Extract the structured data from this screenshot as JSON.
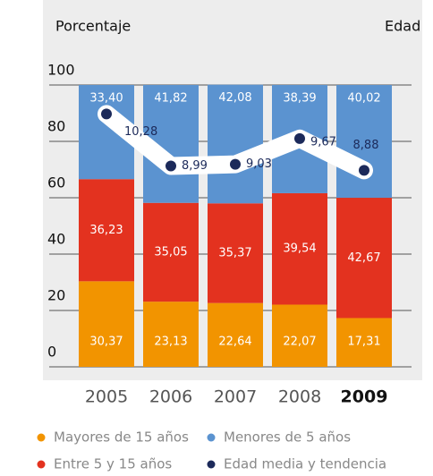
{
  "chart_data": {
    "type": "stacked-bar",
    "y_label": "Porcentaje",
    "y2_label": "Edad",
    "categories": [
      "2005",
      "2006",
      "2007",
      "2008",
      "2009"
    ],
    "ylim": [
      0,
      100
    ],
    "yticks": [
      0,
      20,
      40,
      60,
      80,
      100
    ],
    "y2lim": [
      4,
      11
    ],
    "grid": true,
    "series": [
      {
        "name": "Mayores de 15 años",
        "color": "#f29400",
        "values": [
          30.37,
          23.13,
          22.64,
          22.07,
          17.31
        ],
        "value_labels": [
          "30,37",
          "23,13",
          "22,64",
          "22,07",
          "17,31"
        ]
      },
      {
        "name": "Entre 5 y 15 años",
        "color": "#e3321f",
        "values": [
          36.23,
          35.05,
          35.37,
          39.54,
          42.67
        ],
        "value_labels": [
          "36,23",
          "35,05",
          "35,37",
          "39,54",
          "42,67"
        ]
      },
      {
        "name": "Menores de 5 años",
        "color": "#5b93d0",
        "values": [
          33.4,
          41.82,
          42.08,
          38.39,
          40.02
        ],
        "value_labels": [
          "33,40",
          "41,82",
          "42,08",
          "38,39",
          "40,02"
        ]
      },
      {
        "name": "Edad media y tendencia",
        "color": "#1c2a5a",
        "type": "line",
        "axis": "y2",
        "values": [
          10.28,
          8.99,
          9.03,
          9.67,
          8.88
        ],
        "value_labels": [
          "10,28",
          "8,99",
          "9,03",
          "9,67",
          "8,88"
        ]
      }
    ]
  }
}
